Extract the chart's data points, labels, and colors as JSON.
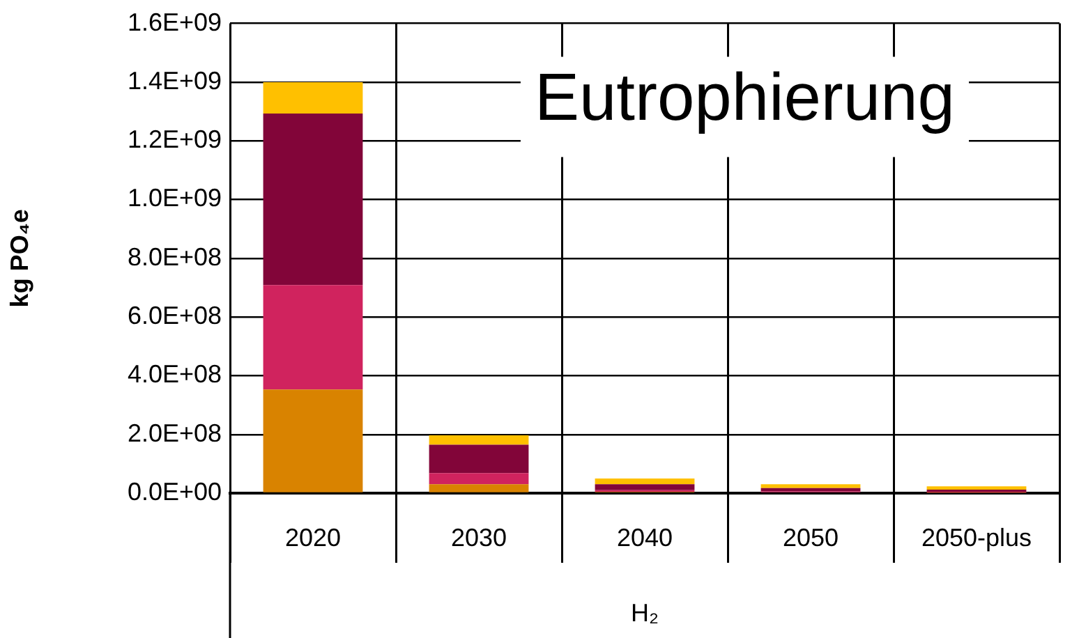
{
  "chart_data": {
    "type": "bar",
    "title": "Eutrophierung",
    "xlabel": "H₂",
    "ylabel": "kg PO₄e",
    "stacked": true,
    "grid": true,
    "legend": false,
    "categories": [
      "2020",
      "2030",
      "2040",
      "2050",
      "2050-plus"
    ],
    "series": [
      {
        "color": "#d98300",
        "values": [
          353000000.0,
          30000000.0,
          5000000.0,
          3000000.0,
          2000000.0
        ]
      },
      {
        "color": "#d0235e",
        "values": [
          356000000.0,
          38000000.0,
          5000000.0,
          3000000.0,
          3000000.0
        ]
      },
      {
        "color": "#820539",
        "values": [
          584000000.0,
          97000000.0,
          20000000.0,
          11000000.0,
          7000000.0
        ]
      },
      {
        "color": "#ffc000",
        "values": [
          107000000.0,
          32000000.0,
          20000000.0,
          13000000.0,
          11000000.0
        ]
      }
    ],
    "ylim": [
      0,
      1600000000.0
    ],
    "yticks": [
      {
        "value": 0,
        "label": "0.0E+00"
      },
      {
        "value": 200000000.0,
        "label": "2.0E+08"
      },
      {
        "value": 400000000.0,
        "label": "4.0E+08"
      },
      {
        "value": 600000000.0,
        "label": "6.0E+08"
      },
      {
        "value": 800000000.0,
        "label": "8.0E+08"
      },
      {
        "value": 1000000000.0,
        "label": "1.0E+09"
      },
      {
        "value": 1200000000.0,
        "label": "1.2E+09"
      },
      {
        "value": 1400000000.0,
        "label": "1.4E+09"
      },
      {
        "value": 1600000000.0,
        "label": "1.6E+09"
      }
    ]
  }
}
